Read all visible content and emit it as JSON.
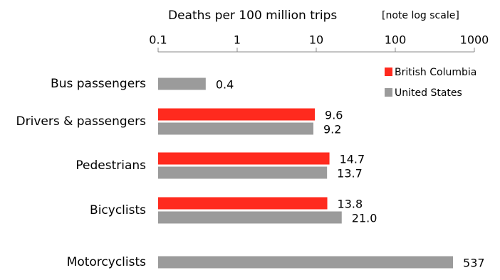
{
  "chart_data": {
    "type": "barh",
    "title": "Deaths per 100 million trips",
    "annotation": "[note log scale]",
    "categories": [
      "Bus passengers",
      "Drivers & passengers",
      "Pedestrians",
      "Bicyclists",
      "Motorcyclists"
    ],
    "series": [
      {
        "name": "British Columbia",
        "color": "#ff2a1e",
        "values": [
          null,
          9.6,
          14.7,
          13.8,
          null
        ]
      },
      {
        "name": "United States",
        "color": "#9b9b9b",
        "values": [
          0.4,
          9.2,
          13.7,
          21.0,
          537
        ],
        "value_labels": [
          "0.4",
          "9.2",
          "13.7",
          "21.0",
          "537"
        ]
      }
    ],
    "xlim": [
      0.1,
      1000
    ],
    "xticks": [
      0.1,
      1,
      10,
      100,
      1000
    ],
    "xscale": "log",
    "legend": "upper right"
  }
}
